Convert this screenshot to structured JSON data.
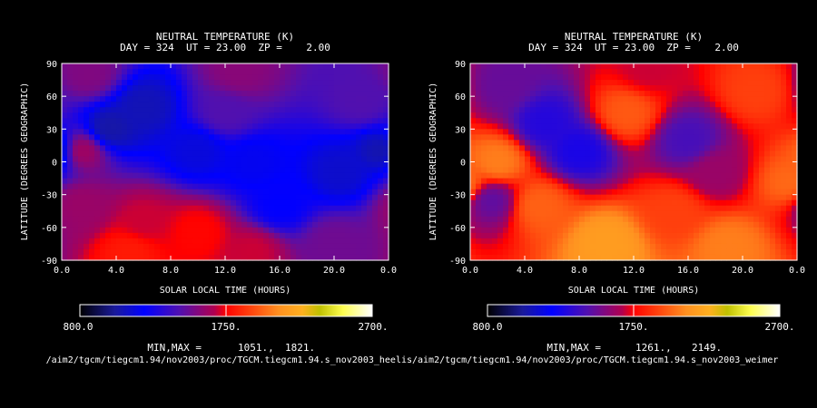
{
  "chart_data": [
    {
      "type": "heatmap",
      "title": "NEUTRAL TEMPERATURE (K)",
      "subtitle": "DAY = 324  UT = 23.00  ZP =    2.00",
      "xlabel": "SOLAR LOCAL TIME (HOURS)",
      "ylabel": "LATITUDE (DEGREES GEOGRAPHIC)",
      "xlim": [
        0,
        24
      ],
      "ylim": [
        -90,
        90
      ],
      "x_ticks": [
        "0.0",
        "4.0",
        "8.0",
        "12.0",
        "16.0",
        "20.0",
        "0.0"
      ],
      "y_ticks": [
        "90",
        "60",
        "30",
        "0",
        "-30",
        "-60",
        "-90"
      ],
      "colorbar": {
        "min_label": "800.0",
        "mid_label": "1750.",
        "max_label": "2700.",
        "range": [
          800,
          2700
        ]
      },
      "minmax_label": "MIN,MAX =",
      "min_value": "1051.,",
      "max_value": "1821.",
      "source_path": "/aim2/tgcm/tiegcm1.94/nov2003/proc/TGCM.tiegcm1.94.s_nov2003_heelis",
      "value_range": [
        1051,
        1821
      ],
      "features": [
        {
          "lt": 3.5,
          "lat": 30,
          "value": 1050
        },
        {
          "lt": 6.0,
          "lat": 50,
          "value": 1080
        },
        {
          "lt": 10.0,
          "lat": 10,
          "value": 1150
        },
        {
          "lt": 14.0,
          "lat": 0,
          "value": 1190
        },
        {
          "lt": 20.5,
          "lat": -10,
          "value": 1120
        },
        {
          "lt": 23.5,
          "lat": 10,
          "value": 1060
        },
        {
          "lt": 16.0,
          "lat": -40,
          "value": 1220
        },
        {
          "lt": 12.0,
          "lat": 45,
          "value": 1450
        },
        {
          "lt": 13.0,
          "lat": 82,
          "value": 1580
        },
        {
          "lt": 2.0,
          "lat": 80,
          "value": 1560
        },
        {
          "lt": 1.5,
          "lat": 10,
          "value": 1640
        },
        {
          "lt": 1.5,
          "lat": -40,
          "value": 1620
        },
        {
          "lt": 6.0,
          "lat": -55,
          "value": 1700
        },
        {
          "lt": 10.0,
          "lat": -65,
          "value": 1760
        },
        {
          "lt": 5.0,
          "lat": -82,
          "value": 1810
        },
        {
          "lt": 14.0,
          "lat": -82,
          "value": 1700
        },
        {
          "lt": 20.0,
          "lat": -75,
          "value": 1520
        },
        {
          "lt": 22.0,
          "lat": 55,
          "value": 1450
        }
      ]
    },
    {
      "type": "heatmap",
      "title": "NEUTRAL TEMPERATURE (K)",
      "subtitle": "DAY = 324  UT = 23.00  ZP =    2.00",
      "xlabel": "SOLAR LOCAL TIME (HOURS)",
      "ylabel": "LATITUDE (DEGREES GEOGRAPHIC)",
      "xlim": [
        0,
        24
      ],
      "ylim": [
        -90,
        90
      ],
      "x_ticks": [
        "0.0",
        "4.0",
        "8.0",
        "12.0",
        "16.0",
        "20.0",
        "0.0"
      ],
      "y_ticks": [
        "90",
        "60",
        "30",
        "0",
        "-30",
        "-60",
        "-90"
      ],
      "colorbar": {
        "min_label": "800.0",
        "mid_label": "1750.",
        "max_label": "2700.",
        "range": [
          800,
          2700
        ]
      },
      "minmax_label": "MIN,MAX =",
      "min_value": "1261.,",
      "max_value": "2149.",
      "source_path": "/aim2/tgcm/tiegcm1.94/nov2003/proc/TGCM.tiegcm1.94.s_nov2003_weimer",
      "value_range": [
        1261,
        2149
      ],
      "features": [
        {
          "lt": 5.5,
          "lat": 35,
          "value": 1320
        },
        {
          "lt": 8.0,
          "lat": 10,
          "value": 1290
        },
        {
          "lt": 16.0,
          "lat": 20,
          "value": 1420
        },
        {
          "lt": 2.5,
          "lat": 70,
          "value": 1500
        },
        {
          "lt": 1.5,
          "lat": -35,
          "value": 1480
        },
        {
          "lt": 11.5,
          "lat": 45,
          "value": 1960
        },
        {
          "lt": 21.0,
          "lat": 65,
          "value": 1900
        },
        {
          "lt": 2.0,
          "lat": 0,
          "value": 2050
        },
        {
          "lt": 23.5,
          "lat": -20,
          "value": 2000
        },
        {
          "lt": 5.0,
          "lat": -40,
          "value": 1980
        },
        {
          "lt": 15.0,
          "lat": -45,
          "value": 1900
        },
        {
          "lt": 10.0,
          "lat": -75,
          "value": 2149
        },
        {
          "lt": 19.0,
          "lat": -78,
          "value": 2050
        },
        {
          "lt": 13.0,
          "lat": 85,
          "value": 1700
        },
        {
          "lt": 18.0,
          "lat": -10,
          "value": 1620
        }
      ]
    }
  ]
}
